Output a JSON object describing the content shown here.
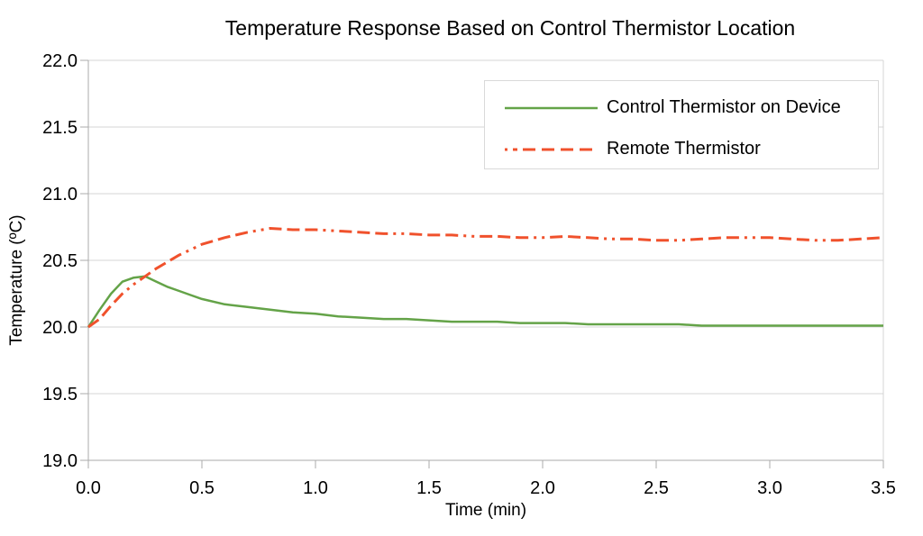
{
  "page": {
    "background": "#ffffff"
  },
  "chart_data": {
    "type": "line",
    "title": "Temperature Response Based on Control Thermistor Location",
    "xlabel": "Time (min)",
    "ylabel": "Temperature (ºC)",
    "xlim": [
      0.0,
      3.5
    ],
    "ylim": [
      19.0,
      22.0
    ],
    "x_ticks": [
      0.0,
      0.5,
      1.0,
      1.5,
      2.0,
      2.5,
      3.0,
      3.5
    ],
    "y_ticks": [
      19.0,
      19.5,
      20.0,
      20.5,
      21.0,
      21.5,
      22.0
    ],
    "grid": "horizontal-only",
    "legend_position": "top-right-inside",
    "colors": {
      "grid": "#d4d4d4",
      "axis": "#ababab",
      "text": "#000000",
      "legend_border": "#d9d9d9"
    },
    "x": [
      0.0,
      0.05,
      0.1,
      0.15,
      0.2,
      0.25,
      0.3,
      0.35,
      0.4,
      0.45,
      0.5,
      0.6,
      0.7,
      0.8,
      0.9,
      1.0,
      1.1,
      1.2,
      1.3,
      1.4,
      1.5,
      1.6,
      1.7,
      1.8,
      1.9,
      2.0,
      2.1,
      2.2,
      2.3,
      2.4,
      2.5,
      2.6,
      2.7,
      2.8,
      2.9,
      3.0,
      3.1,
      3.2,
      3.3,
      3.4,
      3.5
    ],
    "series": [
      {
        "name": "Control Thermistor on Device",
        "color": "#64a348",
        "line_style": "solid",
        "line_width": 2.5,
        "values": [
          20.0,
          20.13,
          20.25,
          20.34,
          20.37,
          20.38,
          20.34,
          20.3,
          20.27,
          20.24,
          20.21,
          20.17,
          20.15,
          20.13,
          20.11,
          20.1,
          20.08,
          20.07,
          20.06,
          20.06,
          20.05,
          20.04,
          20.04,
          20.04,
          20.03,
          20.03,
          20.03,
          20.02,
          20.02,
          20.02,
          20.02,
          20.02,
          20.01,
          20.01,
          20.01,
          20.01,
          20.01,
          20.01,
          20.01,
          20.01,
          20.01
        ]
      },
      {
        "name": "Remote Thermistor",
        "color": "#f0512c",
        "line_style": "dash-dash-dash-dot-dot",
        "line_width": 3,
        "values": [
          20.0,
          20.06,
          20.16,
          20.25,
          20.32,
          20.38,
          20.44,
          20.49,
          20.54,
          20.58,
          20.62,
          20.67,
          20.71,
          20.74,
          20.73,
          20.73,
          20.72,
          20.71,
          20.7,
          20.7,
          20.69,
          20.69,
          20.68,
          20.68,
          20.67,
          20.67,
          20.68,
          20.67,
          20.66,
          20.66,
          20.65,
          20.65,
          20.66,
          20.67,
          20.67,
          20.67,
          20.66,
          20.65,
          20.65,
          20.66,
          20.67
        ]
      }
    ]
  }
}
